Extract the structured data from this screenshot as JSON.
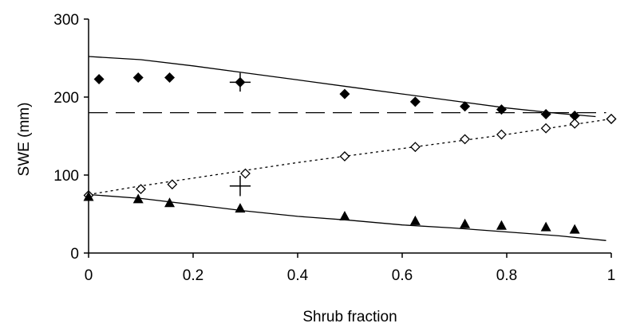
{
  "chart_data": {
    "type": "scatter",
    "title": "",
    "xlabel": "Shrub fraction",
    "ylabel": "SWE (mm)",
    "xlim": [
      0,
      1
    ],
    "ylim": [
      0,
      300
    ],
    "x_ticks": [
      0,
      0.2,
      0.4,
      0.6,
      0.8,
      1
    ],
    "x_tick_labels": [
      "0",
      "0.2",
      "0.4",
      "0.6",
      "0.8",
      "1"
    ],
    "y_ticks": [
      0,
      100,
      200,
      300
    ],
    "y_tick_labels": [
      "0",
      "100",
      "200",
      "300"
    ],
    "grid": false,
    "legend": "none",
    "series": [
      {
        "marker": "filled-diamond",
        "color": "#000000",
        "points": [
          {
            "x": 0.02,
            "y": 223
          },
          {
            "x": 0.095,
            "y": 225
          },
          {
            "x": 0.155,
            "y": 225
          },
          {
            "x": 0.49,
            "y": 204
          },
          {
            "x": 0.625,
            "y": 194
          },
          {
            "x": 0.72,
            "y": 188
          },
          {
            "x": 0.79,
            "y": 184
          },
          {
            "x": 0.875,
            "y": 178
          },
          {
            "x": 0.93,
            "y": 176
          },
          {
            "x": 1.0,
            "y": 172
          }
        ]
      },
      {
        "marker": "open-diamond",
        "color": "#000000",
        "points": [
          {
            "x": 0.0,
            "y": 74
          },
          {
            "x": 0.1,
            "y": 82
          },
          {
            "x": 0.16,
            "y": 88
          },
          {
            "x": 0.3,
            "y": 102
          },
          {
            "x": 0.49,
            "y": 124
          },
          {
            "x": 0.625,
            "y": 136
          },
          {
            "x": 0.72,
            "y": 146
          },
          {
            "x": 0.79,
            "y": 152
          },
          {
            "x": 0.875,
            "y": 160
          },
          {
            "x": 0.93,
            "y": 166
          },
          {
            "x": 1.0,
            "y": 172
          }
        ]
      },
      {
        "marker": "filled-triangle",
        "color": "#000000",
        "points": [
          {
            "x": 0.0,
            "y": 72
          },
          {
            "x": 0.095,
            "y": 69
          },
          {
            "x": 0.155,
            "y": 64
          },
          {
            "x": 0.29,
            "y": 57
          },
          {
            "x": 0.49,
            "y": 47
          },
          {
            "x": 0.625,
            "y": 41
          },
          {
            "x": 0.72,
            "y": 37
          },
          {
            "x": 0.79,
            "y": 35
          },
          {
            "x": 0.875,
            "y": 33
          },
          {
            "x": 0.93,
            "y": 30
          }
        ]
      },
      {
        "marker": "filled-diamond-errorbar",
        "color": "#000000",
        "points": [
          {
            "x": 0.29,
            "y": 219,
            "x_err": 0.02,
            "y_err": 12
          }
        ]
      },
      {
        "marker": "cross-errorbar",
        "color": "#000000",
        "points": [
          {
            "x": 0.29,
            "y": 86,
            "x_err": 0.02,
            "y_err": 13
          }
        ]
      }
    ],
    "lines": [
      {
        "style": "solid",
        "points": [
          {
            "x": 0,
            "y": 252
          },
          {
            "x": 0.1,
            "y": 248
          },
          {
            "x": 0.2,
            "y": 240
          },
          {
            "x": 0.3,
            "y": 231
          },
          {
            "x": 0.4,
            "y": 222
          },
          {
            "x": 0.5,
            "y": 213
          },
          {
            "x": 0.6,
            "y": 204
          },
          {
            "x": 0.7,
            "y": 195
          },
          {
            "x": 0.8,
            "y": 186
          },
          {
            "x": 0.9,
            "y": 179
          },
          {
            "x": 0.97,
            "y": 175
          }
        ]
      },
      {
        "style": "dashed",
        "points": [
          {
            "x": 0,
            "y": 180
          },
          {
            "x": 0.99,
            "y": 180
          }
        ]
      },
      {
        "style": "dotted",
        "points": [
          {
            "x": 0,
            "y": 75
          },
          {
            "x": 0.1,
            "y": 86
          },
          {
            "x": 0.2,
            "y": 96
          },
          {
            "x": 0.3,
            "y": 106
          },
          {
            "x": 0.4,
            "y": 116
          },
          {
            "x": 0.5,
            "y": 125
          },
          {
            "x": 0.6,
            "y": 134
          },
          {
            "x": 0.7,
            "y": 143
          },
          {
            "x": 0.8,
            "y": 152
          },
          {
            "x": 0.9,
            "y": 162
          },
          {
            "x": 1.0,
            "y": 172
          }
        ]
      },
      {
        "style": "solid",
        "points": [
          {
            "x": 0,
            "y": 75
          },
          {
            "x": 0.1,
            "y": 70
          },
          {
            "x": 0.2,
            "y": 62
          },
          {
            "x": 0.3,
            "y": 54
          },
          {
            "x": 0.4,
            "y": 47
          },
          {
            "x": 0.5,
            "y": 42
          },
          {
            "x": 0.6,
            "y": 36
          },
          {
            "x": 0.7,
            "y": 32
          },
          {
            "x": 0.8,
            "y": 27
          },
          {
            "x": 0.9,
            "y": 22
          },
          {
            "x": 0.99,
            "y": 16
          }
        ]
      }
    ]
  }
}
